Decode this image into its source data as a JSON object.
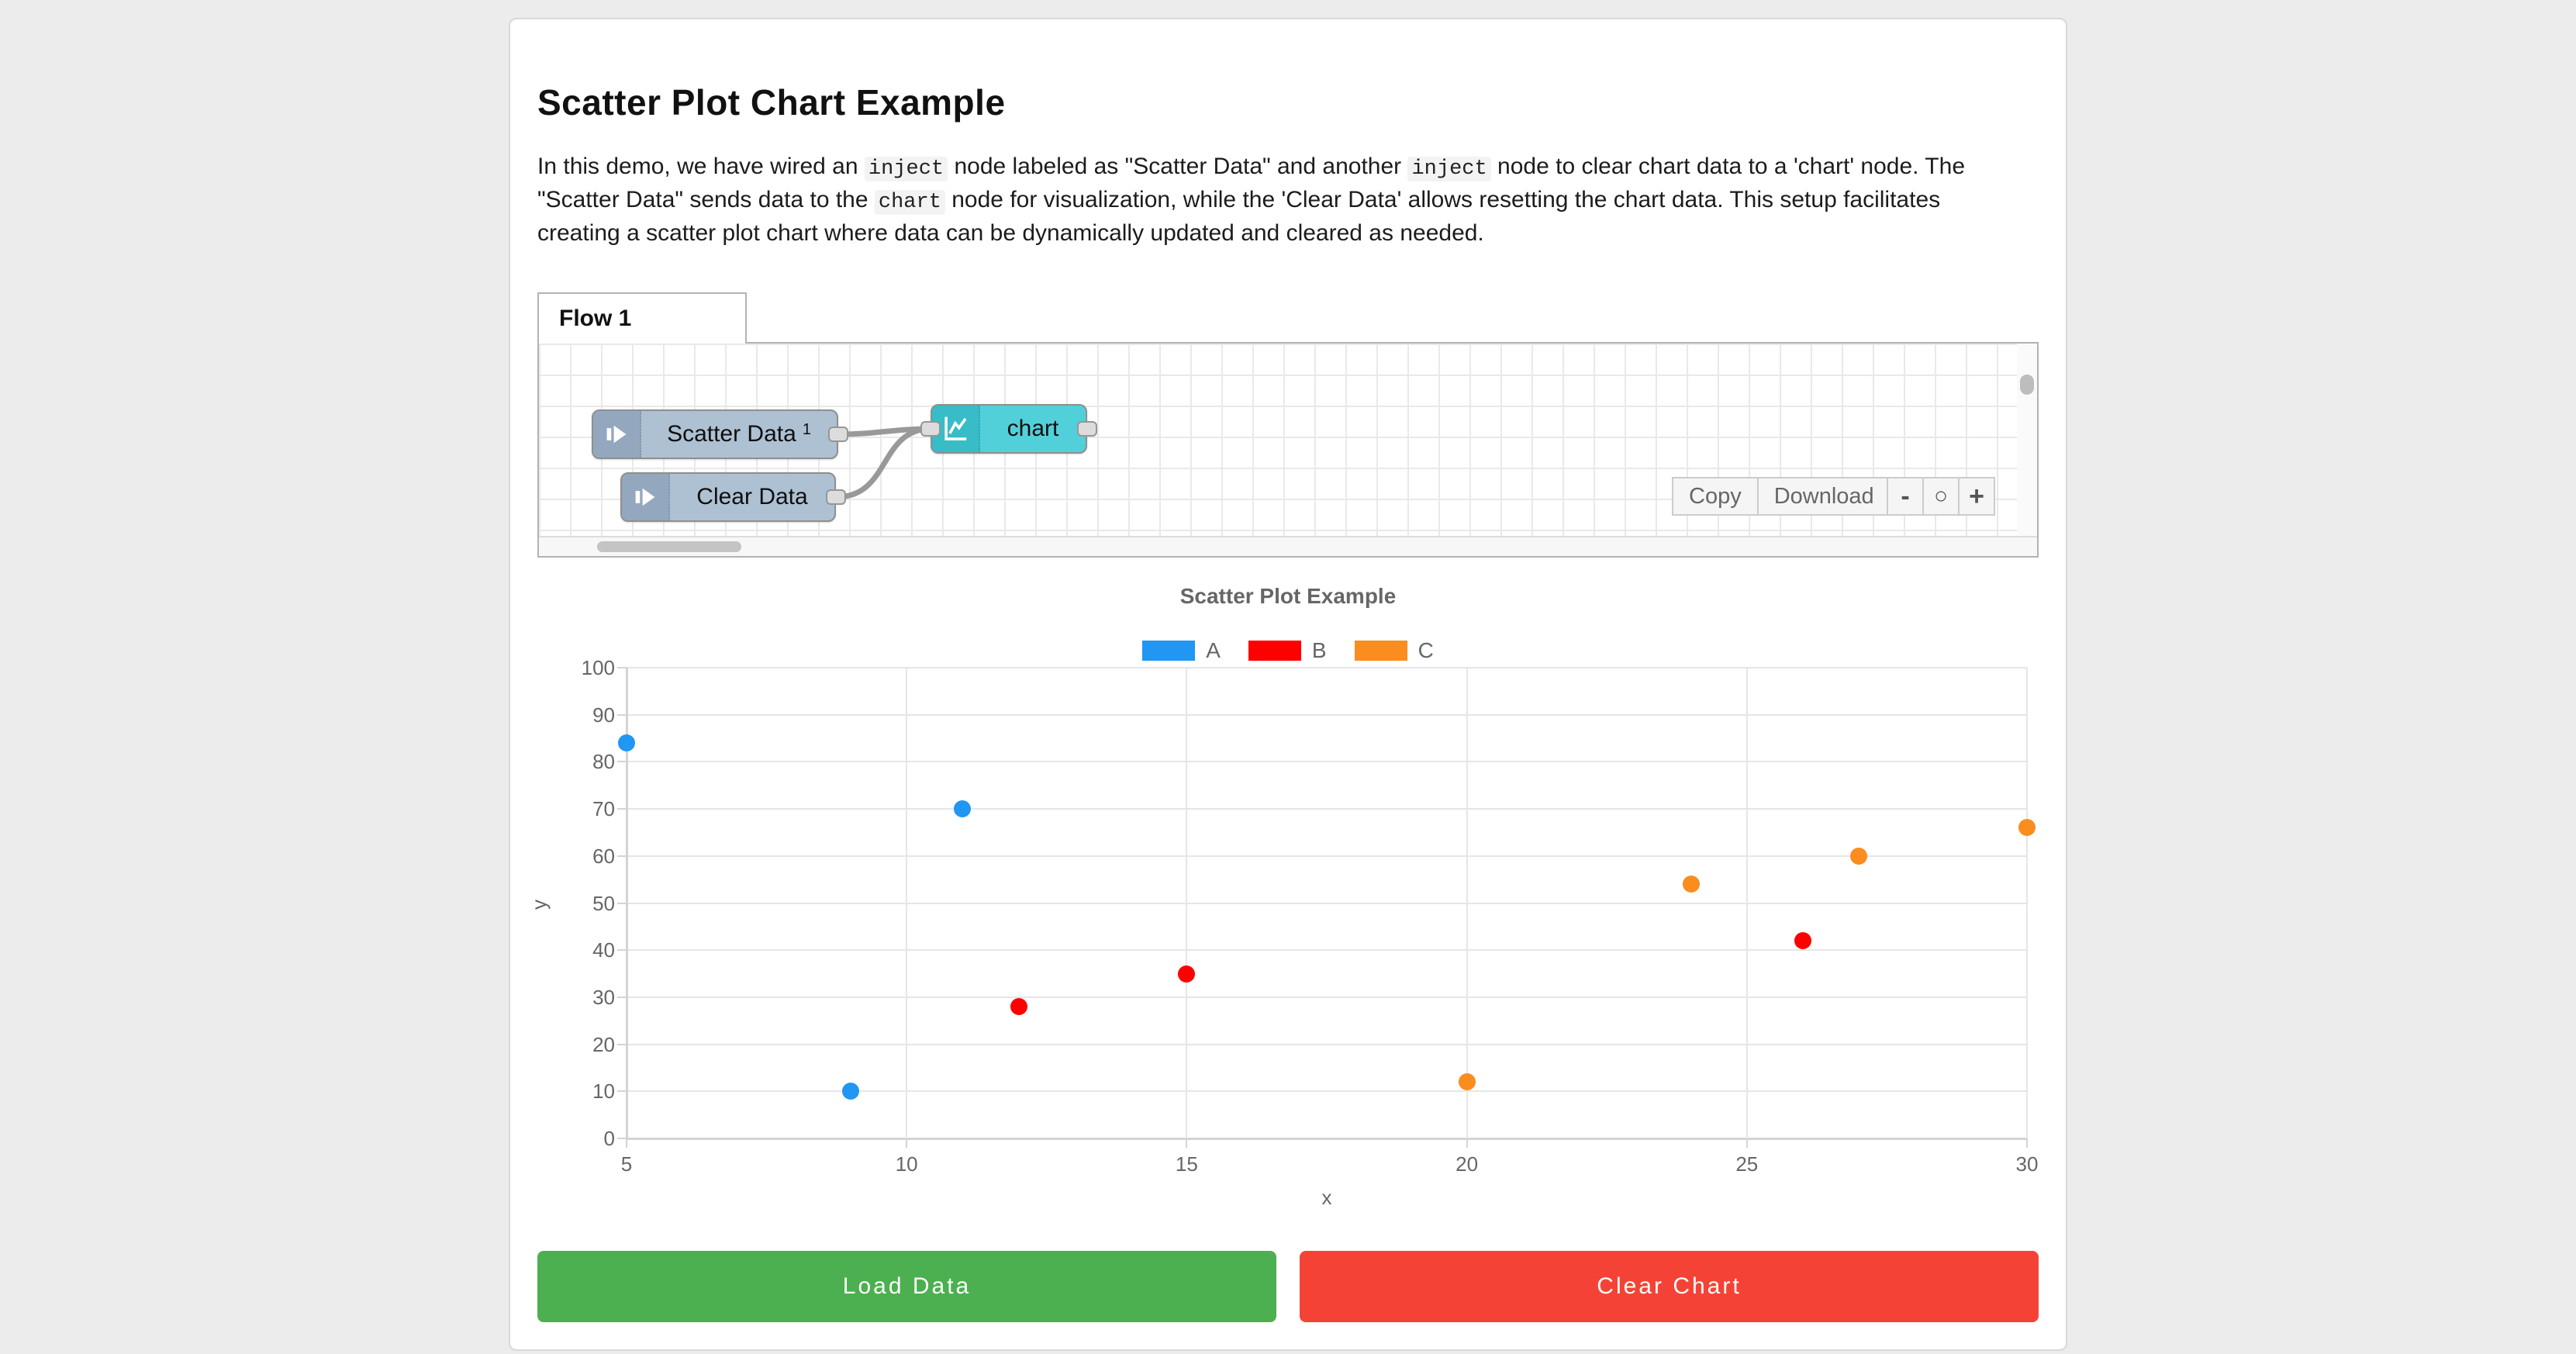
{
  "page": {
    "title": "Scatter Plot Chart Example"
  },
  "intro": {
    "segments": [
      "In this demo, we have wired an ",
      "inject",
      " node labeled as \"Scatter Data\" and another ",
      "inject",
      " node to clear chart data to a 'chart' node. The \"Scatter Data\" sends data to the ",
      "chart",
      " node for visualization, while the 'Clear Data' allows resetting the chart data. This setup facilitates creating a scatter plot chart where data can be dynamically updated and cleared as needed."
    ]
  },
  "flow": {
    "tab_label": "Flow 1",
    "nodes": [
      {
        "type": "inject",
        "label": "Scatter Data",
        "badge": "1"
      },
      {
        "type": "inject",
        "label": "Clear Data",
        "badge": ""
      },
      {
        "type": "chart",
        "label": "chart",
        "badge": ""
      }
    ],
    "toolbar": {
      "copy": "Copy",
      "download": "Download"
    },
    "zoom": {
      "out": "-",
      "reset": "○",
      "in": "+"
    }
  },
  "chart_data": {
    "type": "scatter",
    "title": "Scatter Plot Example",
    "xlabel": "x",
    "ylabel": "y",
    "xlim": [
      5,
      30
    ],
    "ylim": [
      0,
      100
    ],
    "x_ticks": [
      5,
      10,
      15,
      20,
      25,
      30
    ],
    "y_ticks": [
      0,
      10,
      20,
      30,
      40,
      50,
      60,
      70,
      80,
      90,
      100
    ],
    "grid": true,
    "legend_position": "top",
    "series": [
      {
        "name": "A",
        "color": "#2196f3",
        "points": [
          [
            5,
            84
          ],
          [
            9,
            10
          ],
          [
            11,
            70
          ]
        ]
      },
      {
        "name": "B",
        "color": "#ff0000",
        "points": [
          [
            12,
            28
          ],
          [
            15,
            35
          ],
          [
            26,
            42
          ]
        ]
      },
      {
        "name": "C",
        "color": "#fb8c1e",
        "points": [
          [
            20,
            12
          ],
          [
            24,
            54
          ],
          [
            27,
            60
          ],
          [
            30,
            66
          ]
        ]
      }
    ]
  },
  "actions": {
    "load_label": "Load Data",
    "load_color": "#4caf50",
    "clear_label": "Clear Chart",
    "clear_color": "#f44336"
  }
}
